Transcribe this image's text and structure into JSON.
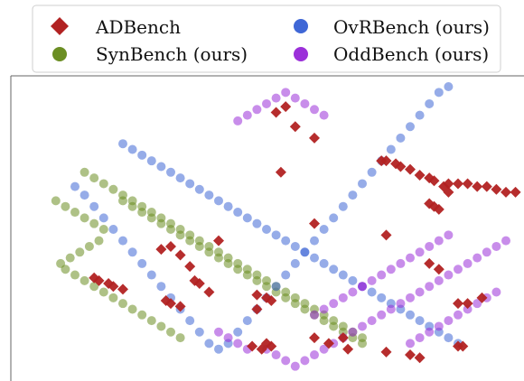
{
  "chart_data": {
    "type": "scatter",
    "title": "",
    "xlabel": "",
    "ylabel": "",
    "xlim": [
      0,
      100
    ],
    "ylim": [
      0,
      100
    ],
    "grid": false,
    "legend_position": "top",
    "series": [
      {
        "name": "ADBench",
        "marker": "diamond",
        "color": "#b22222",
        "points": [
          [
            54,
            93
          ],
          [
            52,
            91
          ],
          [
            56,
            86
          ],
          [
            60,
            82
          ],
          [
            53,
            70
          ],
          [
            74,
            74
          ],
          [
            75,
            74
          ],
          [
            77,
            73
          ],
          [
            78,
            72
          ],
          [
            80,
            71
          ],
          [
            82,
            69
          ],
          [
            84,
            68
          ],
          [
            85,
            67
          ],
          [
            87,
            65
          ],
          [
            88,
            63
          ],
          [
            88,
            66
          ],
          [
            90,
            66
          ],
          [
            92,
            66
          ],
          [
            94,
            65
          ],
          [
            96,
            65
          ],
          [
            98,
            64
          ],
          [
            100,
            63
          ],
          [
            102,
            63
          ],
          [
            84,
            59
          ],
          [
            85,
            58
          ],
          [
            86,
            57
          ],
          [
            60,
            52
          ],
          [
            75,
            48
          ],
          [
            86,
            36
          ],
          [
            84,
            38
          ],
          [
            48,
            27
          ],
          [
            50,
            26
          ],
          [
            51,
            25
          ],
          [
            30,
            44
          ],
          [
            32,
            41
          ],
          [
            28,
            43
          ],
          [
            40,
            46
          ],
          [
            34,
            37
          ],
          [
            35,
            32
          ],
          [
            36,
            31
          ],
          [
            38,
            28
          ],
          [
            32,
            23
          ],
          [
            30,
            24
          ],
          [
            29,
            25
          ],
          [
            20,
            29
          ],
          [
            17,
            31
          ],
          [
            18,
            30
          ],
          [
            14,
            33
          ],
          [
            15,
            32
          ],
          [
            47,
            9
          ],
          [
            49,
            8
          ],
          [
            51,
            9
          ],
          [
            60,
            12
          ],
          [
            63,
            10
          ],
          [
            67,
            8
          ],
          [
            75,
            7
          ],
          [
            80,
            6
          ],
          [
            82,
            5
          ],
          [
            90,
            9
          ],
          [
            91,
            9
          ],
          [
            90,
            24
          ],
          [
            92,
            24
          ],
          [
            95,
            26
          ],
          [
            50,
            10
          ],
          [
            48,
            22
          ],
          [
            66,
            12
          ]
        ]
      },
      {
        "name": "SynBench (ours)",
        "marker": "circle",
        "color": "#6b8e23",
        "points": [
          [
            6,
            60
          ],
          [
            8,
            58
          ],
          [
            10,
            56
          ],
          [
            12,
            54
          ],
          [
            14,
            52
          ],
          [
            16,
            50
          ],
          [
            15,
            46
          ],
          [
            13,
            44
          ],
          [
            11,
            42
          ],
          [
            9,
            40
          ],
          [
            7,
            38
          ],
          [
            8,
            36
          ],
          [
            10,
            34
          ],
          [
            12,
            32
          ],
          [
            14,
            30
          ],
          [
            16,
            28
          ],
          [
            18,
            26
          ],
          [
            20,
            24
          ],
          [
            22,
            22
          ],
          [
            24,
            20
          ],
          [
            26,
            18
          ],
          [
            28,
            16
          ],
          [
            30,
            14
          ],
          [
            32,
            12
          ],
          [
            20,
            60
          ],
          [
            22,
            58
          ],
          [
            24,
            56
          ],
          [
            26,
            54
          ],
          [
            28,
            52
          ],
          [
            30,
            50
          ],
          [
            32,
            48
          ],
          [
            34,
            46
          ],
          [
            36,
            44
          ],
          [
            38,
            42
          ],
          [
            40,
            40
          ],
          [
            42,
            38
          ],
          [
            44,
            36
          ],
          [
            46,
            34
          ],
          [
            48,
            32
          ],
          [
            50,
            30
          ],
          [
            52,
            28
          ],
          [
            54,
            26
          ],
          [
            56,
            24
          ],
          [
            58,
            22
          ],
          [
            60,
            20
          ],
          [
            62,
            18
          ],
          [
            64,
            16
          ],
          [
            66,
            14
          ],
          [
            68,
            12
          ],
          [
            70,
            10
          ],
          [
            12,
            70
          ],
          [
            14,
            68
          ],
          [
            16,
            66
          ],
          [
            18,
            64
          ],
          [
            20,
            62
          ],
          [
            22,
            60
          ],
          [
            24,
            58
          ],
          [
            26,
            56
          ],
          [
            28,
            54
          ],
          [
            30,
            52
          ],
          [
            32,
            50
          ],
          [
            34,
            48
          ],
          [
            36,
            46
          ],
          [
            38,
            44
          ],
          [
            40,
            42
          ],
          [
            42,
            40
          ],
          [
            44,
            38
          ],
          [
            46,
            36
          ],
          [
            48,
            34
          ],
          [
            50,
            32
          ],
          [
            52,
            30
          ],
          [
            54,
            28
          ],
          [
            56,
            26
          ],
          [
            58,
            24
          ],
          [
            60,
            22
          ],
          [
            62,
            20
          ],
          [
            64,
            18
          ],
          [
            66,
            16
          ],
          [
            68,
            14
          ],
          [
            70,
            12
          ]
        ]
      },
      {
        "name": "OvRBench (ours)",
        "marker": "circle",
        "color": "#3f67d6",
        "points": [
          [
            10,
            65
          ],
          [
            12,
            62
          ],
          [
            14,
            58
          ],
          [
            16,
            54
          ],
          [
            18,
            50
          ],
          [
            20,
            46
          ],
          [
            22,
            42
          ],
          [
            24,
            38
          ],
          [
            26,
            34
          ],
          [
            28,
            30
          ],
          [
            30,
            26
          ],
          [
            32,
            22
          ],
          [
            34,
            18
          ],
          [
            36,
            14
          ],
          [
            38,
            10
          ],
          [
            40,
            8
          ],
          [
            42,
            10
          ],
          [
            44,
            14
          ],
          [
            46,
            18
          ],
          [
            48,
            22
          ],
          [
            50,
            26
          ],
          [
            52,
            30
          ],
          [
            54,
            34
          ],
          [
            56,
            38
          ],
          [
            58,
            42
          ],
          [
            60,
            46
          ],
          [
            62,
            50
          ],
          [
            64,
            54
          ],
          [
            66,
            58
          ],
          [
            68,
            62
          ],
          [
            70,
            66
          ],
          [
            72,
            70
          ],
          [
            74,
            74
          ],
          [
            76,
            78
          ],
          [
            78,
            82
          ],
          [
            80,
            86
          ],
          [
            82,
            90
          ],
          [
            84,
            94
          ],
          [
            86,
            98
          ],
          [
            88,
            100
          ],
          [
            20,
            80
          ],
          [
            22,
            78
          ],
          [
            24,
            76
          ],
          [
            26,
            74
          ],
          [
            28,
            72
          ],
          [
            30,
            70
          ],
          [
            32,
            68
          ],
          [
            34,
            66
          ],
          [
            36,
            64
          ],
          [
            38,
            62
          ],
          [
            40,
            60
          ],
          [
            42,
            58
          ],
          [
            44,
            56
          ],
          [
            46,
            54
          ],
          [
            48,
            52
          ],
          [
            50,
            50
          ],
          [
            52,
            48
          ],
          [
            54,
            46
          ],
          [
            56,
            44
          ],
          [
            58,
            42
          ],
          [
            60,
            40
          ],
          [
            62,
            38
          ],
          [
            64,
            36
          ],
          [
            66,
            34
          ],
          [
            68,
            32
          ],
          [
            70,
            30
          ],
          [
            72,
            28
          ],
          [
            74,
            26
          ],
          [
            76,
            24
          ],
          [
            78,
            22
          ],
          [
            80,
            20
          ],
          [
            82,
            18
          ],
          [
            84,
            16
          ],
          [
            86,
            14
          ],
          [
            88,
            12
          ],
          [
            90,
            10
          ]
        ]
      },
      {
        "name": "OddBench (ours)",
        "marker": "circle",
        "color": "#9b30d9",
        "points": [
          [
            48,
            92
          ],
          [
            50,
            94
          ],
          [
            52,
            96
          ],
          [
            54,
            98
          ],
          [
            56,
            96
          ],
          [
            58,
            94
          ],
          [
            46,
            90
          ],
          [
            44,
            88
          ],
          [
            60,
            92
          ],
          [
            62,
            90
          ],
          [
            50,
            8
          ],
          [
            52,
            6
          ],
          [
            54,
            4
          ],
          [
            56,
            2
          ],
          [
            58,
            4
          ],
          [
            60,
            6
          ],
          [
            62,
            8
          ],
          [
            64,
            10
          ],
          [
            66,
            12
          ],
          [
            68,
            14
          ],
          [
            70,
            16
          ],
          [
            72,
            18
          ],
          [
            74,
            20
          ],
          [
            76,
            22
          ],
          [
            78,
            24
          ],
          [
            80,
            26
          ],
          [
            82,
            28
          ],
          [
            84,
            30
          ],
          [
            86,
            32
          ],
          [
            88,
            34
          ],
          [
            90,
            36
          ],
          [
            92,
            38
          ],
          [
            94,
            40
          ],
          [
            96,
            42
          ],
          [
            98,
            44
          ],
          [
            100,
            46
          ],
          [
            40,
            14
          ],
          [
            42,
            12
          ],
          [
            44,
            10
          ],
          [
            46,
            8
          ],
          [
            80,
            10
          ],
          [
            82,
            12
          ],
          [
            84,
            14
          ],
          [
            86,
            16
          ],
          [
            88,
            18
          ],
          [
            90,
            20
          ],
          [
            92,
            22
          ],
          [
            94,
            24
          ],
          [
            96,
            26
          ],
          [
            98,
            28
          ],
          [
            70,
            30
          ],
          [
            72,
            32
          ],
          [
            74,
            34
          ],
          [
            76,
            36
          ],
          [
            78,
            38
          ],
          [
            80,
            40
          ],
          [
            82,
            42
          ],
          [
            84,
            44
          ],
          [
            86,
            46
          ],
          [
            88,
            48
          ],
          [
            60,
            20
          ],
          [
            62,
            22
          ],
          [
            64,
            24
          ],
          [
            66,
            26
          ],
          [
            68,
            28
          ],
          [
            70,
            30
          ]
        ]
      }
    ]
  },
  "legend": {
    "items": [
      {
        "label": "ADBench",
        "series": 0
      },
      {
        "label": "OvRBench (ours)",
        "series": 2
      },
      {
        "label": "SynBench (ours)",
        "series": 1
      },
      {
        "label": "OddBench (ours)",
        "series": 3
      }
    ]
  }
}
